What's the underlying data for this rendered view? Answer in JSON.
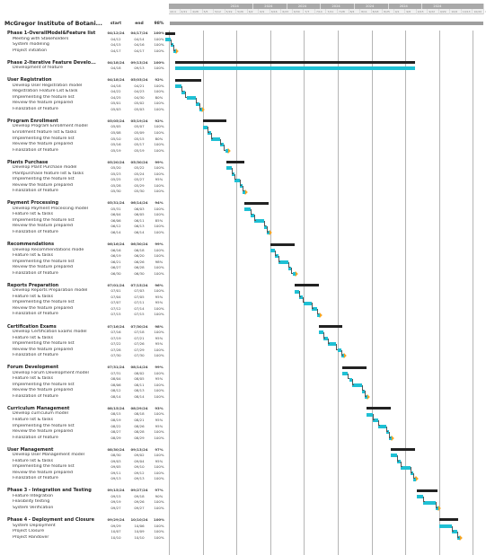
{
  "project": {
    "title": "McGregor Institute of Botani...",
    "col_start": "start",
    "col_end": "end",
    "col_pct": "98%"
  },
  "timeline": {
    "months": [
      "2024",
      "2024",
      "2024",
      "2024",
      "2024",
      "2024",
      "2024"
    ],
    "month_starts": [
      "5/19",
      "6/9",
      "6/30",
      "7/21",
      "8/11",
      "9/1",
      "9/22"
    ],
    "days": [
      "4/14",
      "4/21",
      "4/28",
      "5/5",
      "5/12",
      "5/19",
      "5/26",
      "6/2",
      "6/9",
      "6/16",
      "6/23",
      "6/30",
      "7/7",
      "7/14",
      "7/21",
      "7/28",
      "8/4",
      "8/11",
      "8/18",
      "8/25",
      "9/1",
      "9/8",
      "9/15",
      "9/22",
      "9/29",
      "10/6",
      "10/13",
      "10/20",
      "10/27"
    ]
  },
  "rows": [
    {
      "type": "group",
      "name": "Phase 1-OverallModel&Feature list",
      "start": "04/12/24",
      "end": "04/17/24",
      "pct": "100%"
    },
    {
      "type": "task",
      "name": "Meeting with Stakeholders",
      "start": "04/12",
      "end": "04/14",
      "pct": "100%"
    },
    {
      "type": "task",
      "name": "System modeling",
      "start": "04/15",
      "end": "04/16",
      "pct": "100%"
    },
    {
      "type": "task",
      "name": "Project initiation",
      "start": "04/17",
      "end": "04/17",
      "pct": "100%"
    },
    {
      "type": "gap"
    },
    {
      "type": "group",
      "name": "Phase 2-Iterative Feature Develo...",
      "start": "04/18/24",
      "end": "09/13/24",
      "pct": "100%"
    },
    {
      "type": "task",
      "name": "Development of feature",
      "start": "04/18",
      "end": "09/13",
      "pct": "100%"
    },
    {
      "type": "gap"
    },
    {
      "type": "group",
      "name": "User Registration",
      "start": "04/18/24",
      "end": "05/03/24",
      "pct": "92%"
    },
    {
      "type": "task",
      "name": "Develop User Registration model",
      "start": "04/18",
      "end": "04/21",
      "pct": "100%"
    },
    {
      "type": "task",
      "name": "Registration Feature List &Task",
      "start": "04/22",
      "end": "04/23",
      "pct": "100%"
    },
    {
      "type": "task",
      "name": "Implementing the feature list",
      "start": "04/25",
      "end": "04/30",
      "pct": "80%"
    },
    {
      "type": "task",
      "name": "Review the feature prepared",
      "start": "05/01",
      "end": "05/02",
      "pct": "100%"
    },
    {
      "type": "task",
      "name": "Finalization of feature",
      "start": "05/03",
      "end": "05/03",
      "pct": "100%"
    },
    {
      "type": "gap"
    },
    {
      "type": "group",
      "name": "Program Enrollment",
      "start": "05/05/24",
      "end": "05/19/24",
      "pct": "92%"
    },
    {
      "type": "task",
      "name": "Develop Program Enrollment model",
      "start": "05/05",
      "end": "05/07",
      "pct": "100%"
    },
    {
      "type": "task",
      "name": "Enrollment feature list & tasks",
      "start": "05/08",
      "end": "05/09",
      "pct": "100%"
    },
    {
      "type": "task",
      "name": "Implementing the feature list",
      "start": "05/10",
      "end": "05/15",
      "pct": "80%"
    },
    {
      "type": "task",
      "name": "Review the feature prepared",
      "start": "05/16",
      "end": "05/17",
      "pct": "100%"
    },
    {
      "type": "task",
      "name": "Finalization of feature",
      "start": "05/19",
      "end": "05/19",
      "pct": "100%"
    },
    {
      "type": "gap"
    },
    {
      "type": "group",
      "name": "Plants Purchase",
      "start": "05/20/24",
      "end": "05/30/24",
      "pct": "99%"
    },
    {
      "type": "task",
      "name": "Develop Plant Purchase model",
      "start": "05/20",
      "end": "05/22",
      "pct": "100%"
    },
    {
      "type": "task",
      "name": "Plantpurchase feature list & tasks",
      "start": "05/23",
      "end": "05/24",
      "pct": "100%"
    },
    {
      "type": "task",
      "name": "Implementing the feature list",
      "start": "05/25",
      "end": "05/27",
      "pct": "95%"
    },
    {
      "type": "task",
      "name": "Review the feature prepared",
      "start": "05/28",
      "end": "05/29",
      "pct": "100%"
    },
    {
      "type": "task",
      "name": "Finalization of feature",
      "start": "05/30",
      "end": "05/30",
      "pct": "100%"
    },
    {
      "type": "gap"
    },
    {
      "type": "group",
      "name": "Payment Processing",
      "start": "05/31/24",
      "end": "06/14/24",
      "pct": "94%"
    },
    {
      "type": "task",
      "name": "Develop Payment Processing model",
      "start": "05/31",
      "end": "06/03",
      "pct": "100%"
    },
    {
      "type": "task",
      "name": "Feature list & tasks",
      "start": "06/04",
      "end": "06/05",
      "pct": "100%"
    },
    {
      "type": "task",
      "name": "Implementing the feature list",
      "start": "06/06",
      "end": "06/11",
      "pct": "85%"
    },
    {
      "type": "task",
      "name": "Review the feature prepared",
      "start": "06/12",
      "end": "06/13",
      "pct": "100%"
    },
    {
      "type": "task",
      "name": "Finalization of feature",
      "start": "06/14",
      "end": "06/14",
      "pct": "100%"
    },
    {
      "type": "gap"
    },
    {
      "type": "group",
      "name": "Recommendations",
      "start": "06/16/24",
      "end": "06/30/24",
      "pct": "99%"
    },
    {
      "type": "task",
      "name": "Develop Recommendations mode",
      "start": "06/16",
      "end": "06/18",
      "pct": "100%"
    },
    {
      "type": "task",
      "name": "Feature list & tasks",
      "start": "06/19",
      "end": "06/20",
      "pct": "100%"
    },
    {
      "type": "task",
      "name": "Implementing the feature list",
      "start": "06/21",
      "end": "06/26",
      "pct": "98%"
    },
    {
      "type": "task",
      "name": "Review the feature prepared",
      "start": "06/27",
      "end": "06/28",
      "pct": "100%"
    },
    {
      "type": "task",
      "name": "Finalization of feature",
      "start": "06/30",
      "end": "06/30",
      "pct": "100%"
    },
    {
      "type": "gap"
    },
    {
      "type": "group",
      "name": "Reports Preparation",
      "start": "07/01/24",
      "end": "07/15/24",
      "pct": "96%"
    },
    {
      "type": "task",
      "name": "Develop Reports Preparation model",
      "start": "07/01",
      "end": "07/03",
      "pct": "100%"
    },
    {
      "type": "task",
      "name": "Feature list & tasks",
      "start": "07/04",
      "end": "07/05",
      "pct": "95%"
    },
    {
      "type": "task",
      "name": "Implementing the feature list",
      "start": "07/07",
      "end": "07/11",
      "pct": "95%"
    },
    {
      "type": "task",
      "name": "Review the feature prepared",
      "start": "07/12",
      "end": "07/14",
      "pct": "100%"
    },
    {
      "type": "task",
      "name": "Finalization of feature",
      "start": "07/15",
      "end": "07/15",
      "pct": "100%"
    },
    {
      "type": "gap"
    },
    {
      "type": "group",
      "name": "Certification Exams",
      "start": "07/16/24",
      "end": "07/30/24",
      "pct": "98%"
    },
    {
      "type": "task",
      "name": "Develop Certification Exams model",
      "start": "07/16",
      "end": "07/18",
      "pct": "100%"
    },
    {
      "type": "task",
      "name": "Feature list & tasks",
      "start": "07/19",
      "end": "07/21",
      "pct": "95%"
    },
    {
      "type": "task",
      "name": "Implementing the feature list",
      "start": "07/22",
      "end": "07/26",
      "pct": "95%"
    },
    {
      "type": "task",
      "name": "Review the feature prepared",
      "start": "07/28",
      "end": "07/29",
      "pct": "100%"
    },
    {
      "type": "task",
      "name": "Finalization of feature",
      "start": "07/30",
      "end": "07/30",
      "pct": "100%"
    },
    {
      "type": "gap"
    },
    {
      "type": "group",
      "name": "Forum Development",
      "start": "07/31/24",
      "end": "08/14/24",
      "pct": "99%"
    },
    {
      "type": "task",
      "name": "Develop Forum Development model",
      "start": "07/31",
      "end": "08/02",
      "pct": "100%"
    },
    {
      "type": "task",
      "name": "Feature list & tasks",
      "start": "08/04",
      "end": "08/05",
      "pct": "95%"
    },
    {
      "type": "task",
      "name": "Implementing the feature list",
      "start": "08/06",
      "end": "08/11",
      "pct": "100%"
    },
    {
      "type": "task",
      "name": "Review the feature prepared",
      "start": "08/12",
      "end": "08/13",
      "pct": "100%"
    },
    {
      "type": "task",
      "name": "Finalization of feature",
      "start": "08/14",
      "end": "08/14",
      "pct": "100%"
    },
    {
      "type": "gap"
    },
    {
      "type": "group",
      "name": "Curriculum Management",
      "start": "08/15/24",
      "end": "08/29/24",
      "pct": "93%"
    },
    {
      "type": "task",
      "name": "Develop curriculum model",
      "start": "08/15",
      "end": "08/18",
      "pct": "100%"
    },
    {
      "type": "task",
      "name": "Feature list & tasks",
      "start": "08/19",
      "end": "08/21",
      "pct": "95%"
    },
    {
      "type": "task",
      "name": "Implementing the feature list",
      "start": "08/22",
      "end": "08/26",
      "pct": "95%"
    },
    {
      "type": "task",
      "name": "Review the feature prepared",
      "start": "08/27",
      "end": "08/28",
      "pct": "100%"
    },
    {
      "type": "task",
      "name": "Finalization of feature",
      "start": "08/29",
      "end": "08/29",
      "pct": "100%"
    },
    {
      "type": "gap"
    },
    {
      "type": "group",
      "name": "User Management",
      "start": "08/30/24",
      "end": "09/13/24",
      "pct": "97%"
    },
    {
      "type": "task",
      "name": "Develop  User Management model",
      "start": "08/30",
      "end": "09/02",
      "pct": "100%"
    },
    {
      "type": "task",
      "name": "Feature list & tasks",
      "start": "09/03",
      "end": "09/04",
      "pct": "95%"
    },
    {
      "type": "task",
      "name": "Implementing the feature list",
      "start": "09/05",
      "end": "09/10",
      "pct": "100%"
    },
    {
      "type": "task",
      "name": "Review the feature prepared",
      "start": "09/11",
      "end": "09/12",
      "pct": "100%"
    },
    {
      "type": "task",
      "name": "Finalization of feature",
      "start": "09/13",
      "end": "09/13",
      "pct": "100%"
    },
    {
      "type": "gap"
    },
    {
      "type": "group",
      "name": "Phase 3 -  Integration and Testing",
      "start": "09/15/24",
      "end": "09/27/24",
      "pct": "97%"
    },
    {
      "type": "task",
      "name": "Feature Integration",
      "start": "09/15",
      "end": "09/18",
      "pct": "90%"
    },
    {
      "type": "task",
      "name": "Feasibility testing",
      "start": "09/19",
      "end": "09/26",
      "pct": "100%"
    },
    {
      "type": "task",
      "name": "System Verification",
      "start": "09/27",
      "end": "09/27",
      "pct": "100%"
    },
    {
      "type": "gap"
    },
    {
      "type": "group",
      "name": "Phase 4 - Deployment and Closure",
      "start": "09/29/24",
      "end": "10/10/24",
      "pct": "100%"
    },
    {
      "type": "task",
      "name": "System Deployment",
      "start": "09/29",
      "end": "10/06",
      "pct": "100%"
    },
    {
      "type": "task",
      "name": "Project Closure",
      "start": "10/07",
      "end": "10/09",
      "pct": "100%"
    },
    {
      "type": "task",
      "name": "Project Handover",
      "start": "10/10",
      "end": "10/10",
      "pct": "100%"
    }
  ]
}
